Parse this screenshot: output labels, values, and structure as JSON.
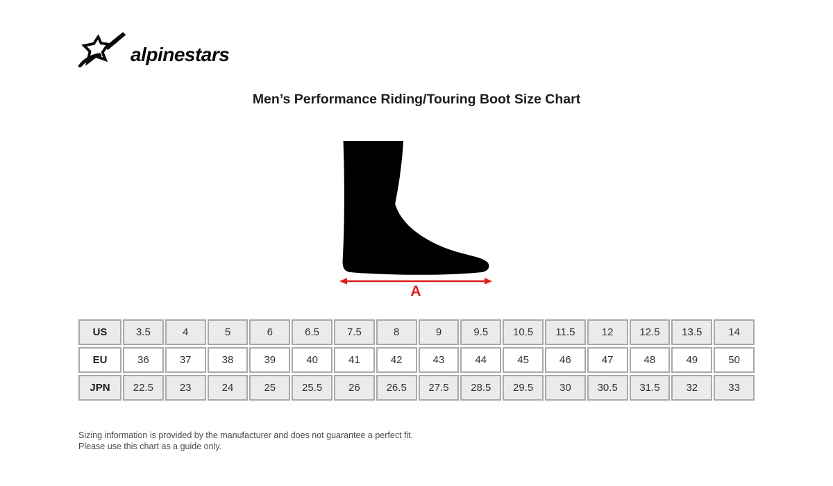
{
  "brand": {
    "wordmark": "alpinestars"
  },
  "chart_data": {
    "type": "table",
    "title": "Men’s Performance Riding/Touring Boot Size Chart",
    "rows": [
      {
        "label": "US",
        "values": [
          "3.5",
          "4",
          "5",
          "6",
          "6.5",
          "7.5",
          "8",
          "9",
          "9.5",
          "10.5",
          "11.5",
          "12",
          "12.5",
          "13.5",
          "14"
        ]
      },
      {
        "label": "EU",
        "values": [
          "36",
          "37",
          "38",
          "39",
          "40",
          "41",
          "42",
          "43",
          "44",
          "45",
          "46",
          "47",
          "48",
          "49",
          "50"
        ]
      },
      {
        "label": "JPN",
        "values": [
          "22.5",
          "23",
          "24",
          "25",
          "25.5",
          "26",
          "26.5",
          "27.5",
          "28.5",
          "29.5",
          "30",
          "30.5",
          "31.5",
          "32",
          "33"
        ]
      }
    ]
  },
  "diagram": {
    "measurement_label": "A",
    "arrow_color": "#dd1c1c",
    "foot_color": "#000000"
  },
  "footer": {
    "line1": "Sizing information is provided by the manufacturer and does not guarantee a perfect fit.",
    "line2": "Please use this chart as a guide only."
  }
}
